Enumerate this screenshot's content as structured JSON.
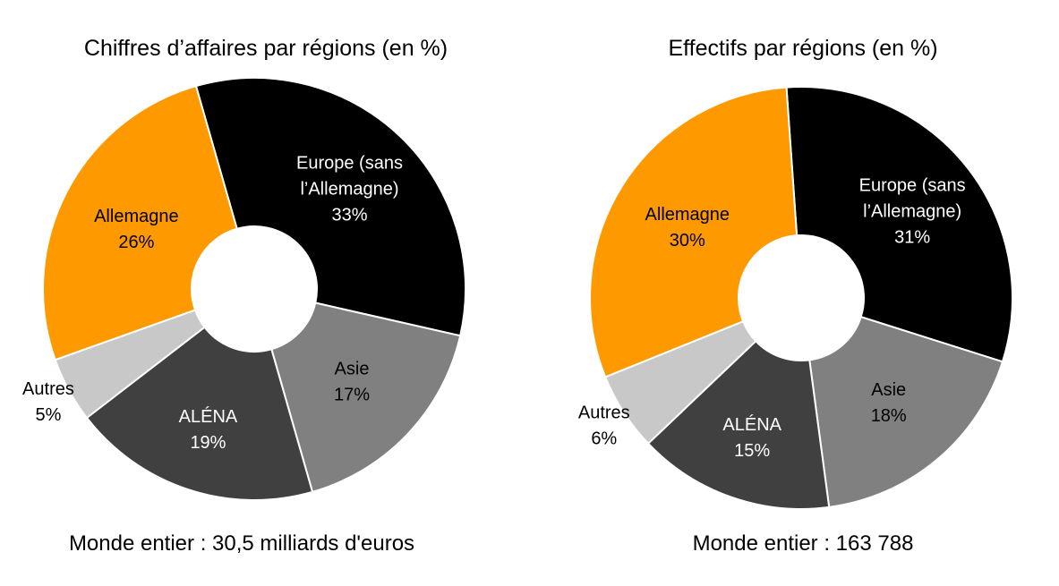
{
  "chart_data": [
    {
      "type": "pie",
      "variant": "donut",
      "title": "Chiffres d’affaires par régions (en %)",
      "footer": "Monde entier : 30,5 milliards d'euros",
      "slices": [
        {
          "label_lines": [
            "Europe (sans",
            "l’Allemagne)"
          ],
          "value": 33,
          "value_label": "33%",
          "color": "#000000",
          "text_color": "#ffffff"
        },
        {
          "label_lines": [
            "Asie"
          ],
          "value": 17,
          "value_label": "17%",
          "color": "#808080",
          "text_color": "#000000"
        },
        {
          "label_lines": [
            "ALÉNA"
          ],
          "value": 19,
          "value_label": "19%",
          "color": "#404040",
          "text_color": "#ffffff"
        },
        {
          "label_lines": [
            "Autres"
          ],
          "value": 5,
          "value_label": "5%",
          "color": "#c8c8c8",
          "text_color": "#000000",
          "label_outside": true
        },
        {
          "label_lines": [
            "Allemagne"
          ],
          "value": 26,
          "value_label": "26%",
          "color": "#ff9900",
          "text_color": "#000000"
        }
      ]
    },
    {
      "type": "pie",
      "variant": "donut",
      "title": "Effectifs par régions (en %)",
      "footer": "Monde entier : 163 788",
      "slices": [
        {
          "label_lines": [
            "Europe (sans",
            "l’Allemagne)"
          ],
          "value": 31,
          "value_label": "31%",
          "color": "#000000",
          "text_color": "#ffffff"
        },
        {
          "label_lines": [
            "Asie"
          ],
          "value": 18,
          "value_label": "18%",
          "color": "#808080",
          "text_color": "#000000"
        },
        {
          "label_lines": [
            "ALÉNA"
          ],
          "value": 15,
          "value_label": "15%",
          "color": "#404040",
          "text_color": "#ffffff"
        },
        {
          "label_lines": [
            "Autres"
          ],
          "value": 6,
          "value_label": "6%",
          "color": "#c8c8c8",
          "text_color": "#000000",
          "label_outside": true
        },
        {
          "label_lines": [
            "Allemagne"
          ],
          "value": 30,
          "value_label": "30%",
          "color": "#ff9900",
          "text_color": "#000000"
        }
      ]
    }
  ]
}
